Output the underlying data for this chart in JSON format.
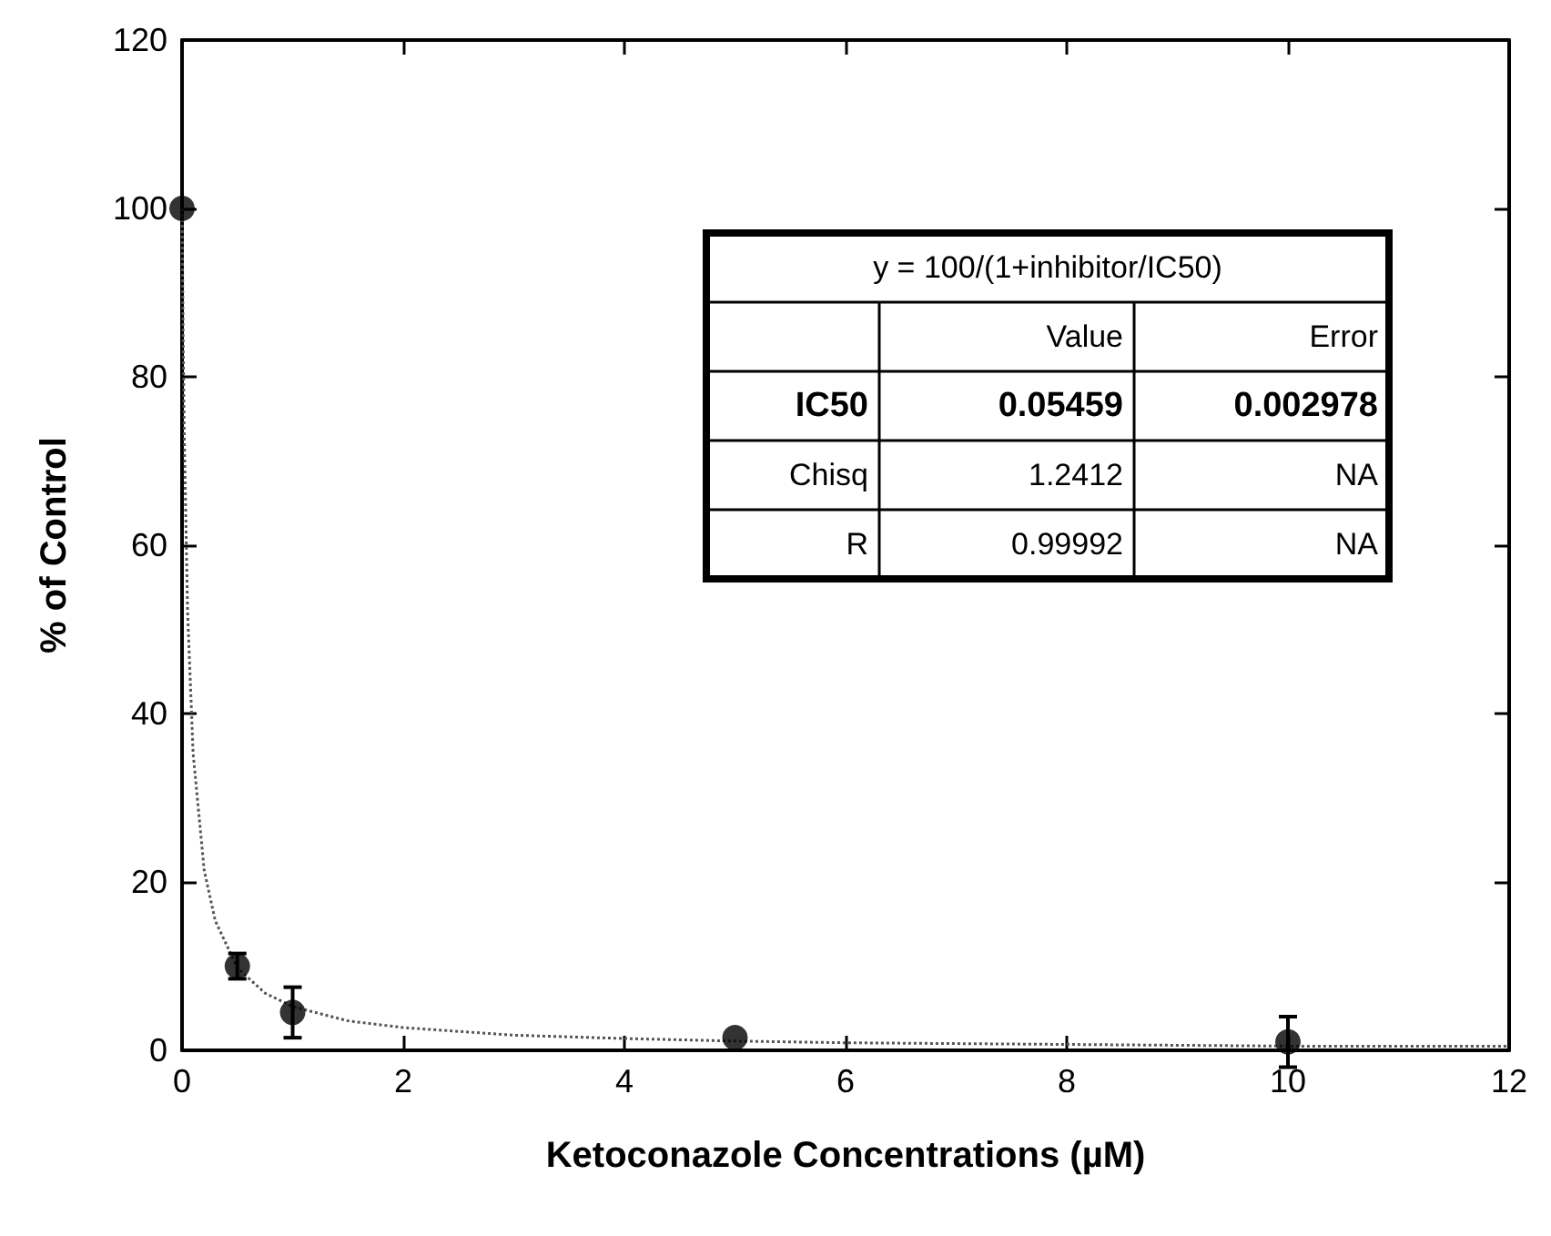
{
  "chart_data": {
    "type": "scatter",
    "xlabel": "Ketoconazole Concentrations (µM)",
    "ylabel": "% of Control",
    "xlim": [
      0,
      12
    ],
    "xticks": [
      0,
      2,
      4,
      6,
      8,
      10,
      12
    ],
    "ylim": [
      0,
      120
    ],
    "yticks": [
      0,
      20,
      40,
      60,
      80,
      100,
      120
    ],
    "grid": false,
    "marker": "circle",
    "series": [
      {
        "color": "#000000",
        "x": [
          0,
          0.5,
          1,
          5,
          10
        ],
        "values": [
          100,
          10,
          4.5,
          1.5,
          1
        ],
        "errors": [
          null,
          1.5,
          3,
          null,
          3
        ]
      },
      {
        "type": "line",
        "color": "#555555",
        "line_style": "dotted",
        "marker": "none",
        "x": [
          0,
          0.01,
          0.02,
          0.05,
          0.1,
          0.2,
          0.3,
          0.5,
          0.75,
          1,
          1.5,
          2,
          3,
          4,
          5,
          6,
          8,
          10,
          12
        ],
        "values": [
          100,
          84.5,
          73.2,
          52.2,
          35.3,
          21.4,
          15.4,
          9.8,
          6.8,
          5.2,
          3.5,
          2.7,
          1.8,
          1.4,
          1.1,
          0.9,
          0.7,
          0.5,
          0.5
        ]
      }
    ],
    "annotations": [
      "y = 100/(1+inhibitor/IC50)",
      "Value",
      "Error",
      "IC50",
      "0.05459",
      "0.002978",
      "Chisq",
      "1.2412",
      "NA",
      "R",
      "0.99992",
      "NA"
    ]
  }
}
